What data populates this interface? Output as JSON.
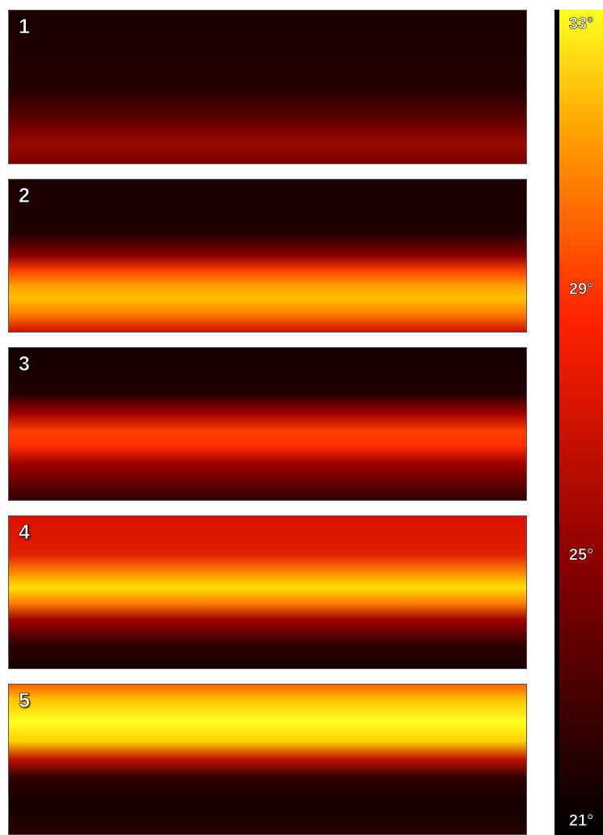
{
  "panels": [
    {
      "label": "1"
    },
    {
      "label": "2"
    },
    {
      "label": "3"
    },
    {
      "label": "4"
    },
    {
      "label": "5"
    }
  ],
  "colorbar": {
    "lim": [
      21,
      33
    ],
    "ticks": [
      {
        "value": 21,
        "label": "21°"
      },
      {
        "value": 25,
        "label": "25°"
      },
      {
        "value": 29,
        "label": "29°"
      },
      {
        "value": 33,
        "label": "33°"
      }
    ]
  }
}
